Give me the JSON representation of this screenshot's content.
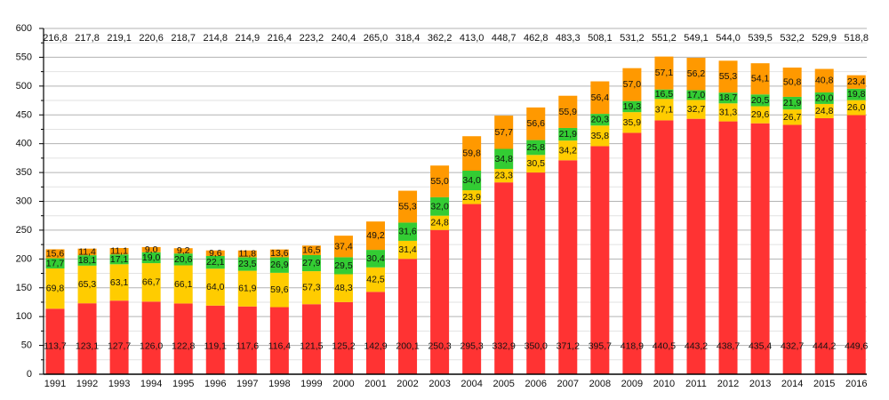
{
  "chart_data": {
    "type": "bar",
    "stacked": true,
    "title": "",
    "xlabel": "",
    "ylabel": "",
    "ylim": [
      0,
      600
    ],
    "y_major_step": 50,
    "y_minor_step": 25,
    "grid": true,
    "legend": "none",
    "categories": [
      "1991",
      "1992",
      "1993",
      "1994",
      "1995",
      "1996",
      "1997",
      "1998",
      "1999",
      "2000",
      "2001",
      "2002",
      "2003",
      "2004",
      "2005",
      "2006",
      "2007",
      "2008",
      "2009",
      "2010",
      "2011",
      "2012",
      "2013",
      "2014",
      "2015",
      "2016"
    ],
    "y_ticks": [
      "0",
      "50",
      "100",
      "150",
      "200",
      "250",
      "300",
      "350",
      "400",
      "450",
      "500",
      "550",
      "600"
    ],
    "series": [
      {
        "name": "series-1",
        "color": "#ff3333",
        "values": [
          113.7,
          123.1,
          127.7,
          126.0,
          122.8,
          119.1,
          117.6,
          116.4,
          121.5,
          125.2,
          142.9,
          200.1,
          250.3,
          295.3,
          332.9,
          350.0,
          371.2,
          395.7,
          418.9,
          440.5,
          443.2,
          438.7,
          435.4,
          432.7,
          444.2,
          449.6
        ],
        "labels": [
          "113,7",
          "123,1",
          "127,7",
          "126,0",
          "122,8",
          "119,1",
          "117,6",
          "116,4",
          "121,5",
          "125,2",
          "142,9",
          "200,1",
          "250,3",
          "295,3",
          "332,9",
          "350,0",
          "371,2",
          "395,7",
          "418,9",
          "440,5",
          "443,2",
          "438,7",
          "435,4",
          "432,7",
          "444,2",
          "449,6"
        ]
      },
      {
        "name": "series-2",
        "color": "#ffcc00",
        "values": [
          69.8,
          65.3,
          63.1,
          66.7,
          66.1,
          64.0,
          61.9,
          59.6,
          57.3,
          48.3,
          42.5,
          31.4,
          24.8,
          23.9,
          23.3,
          30.5,
          34.2,
          35.8,
          35.9,
          37.1,
          32.7,
          31.3,
          29.6,
          26.7,
          24.8,
          26.0
        ],
        "labels": [
          "69,8",
          "65,3",
          "63,1",
          "66,7",
          "66,1",
          "64,0",
          "61,9",
          "59,6",
          "57,3",
          "48,3",
          "42,5",
          "31,4",
          "24,8",
          "23,9",
          "23,3",
          "30,5",
          "34,2",
          "35,8",
          "35,9",
          "37,1",
          "32,7",
          "31,3",
          "29,6",
          "26,7",
          "24,8",
          "26,0"
        ]
      },
      {
        "name": "series-3",
        "color": "#33cc33",
        "values": [
          17.7,
          18.1,
          17.1,
          19.0,
          20.6,
          22.1,
          23.5,
          26.9,
          27.9,
          29.5,
          30.4,
          31.6,
          32.0,
          34.0,
          34.8,
          25.8,
          21.9,
          20.3,
          19.3,
          16.5,
          17.0,
          18.7,
          20.5,
          21.9,
          20.0,
          19.8
        ],
        "labels": [
          "17,7",
          "18,1",
          "17,1",
          "19,0",
          "20,6",
          "22,1",
          "23,5",
          "26,9",
          "27,9",
          "29,5",
          "30,4",
          "31,6",
          "32,0",
          "34,0",
          "34,8",
          "25,8",
          "21,9",
          "20,3",
          "19,3",
          "16,5",
          "17,0",
          "18,7",
          "20,5",
          "21,9",
          "20,0",
          "19,8"
        ]
      },
      {
        "name": "series-4",
        "color": "#ff9900",
        "values": [
          15.6,
          11.4,
          11.1,
          9.0,
          9.2,
          9.6,
          11.8,
          13.6,
          16.5,
          37.4,
          49.2,
          55.3,
          55.0,
          59.8,
          57.7,
          56.6,
          55.9,
          56.4,
          57.0,
          57.1,
          56.2,
          55.3,
          54.1,
          50.8,
          40.8,
          23.4
        ],
        "labels": [
          "15,6",
          "11,4",
          "11,1",
          "9,0",
          "9,2",
          "9,6",
          "11,8",
          "13,6",
          "16,5",
          "37,4",
          "49,2",
          "55,3",
          "55,0",
          "59,8",
          "57,7",
          "56,6",
          "55,9",
          "56,4",
          "57,0",
          "57,1",
          "56,2",
          "55,3",
          "54,1",
          "50,8",
          "40,8",
          "23,4"
        ]
      }
    ],
    "totals": [
      216.8,
      217.8,
      219.1,
      220.6,
      218.7,
      214.8,
      214.9,
      216.4,
      223.2,
      240.4,
      265.0,
      318.4,
      362.2,
      413.0,
      448.7,
      462.8,
      483.3,
      508.1,
      531.2,
      551.2,
      549.1,
      544.0,
      539.5,
      532.2,
      529.9,
      518.8
    ],
    "total_labels": [
      "216,8",
      "217,8",
      "219,1",
      "220,6",
      "218,7",
      "214,8",
      "214,9",
      "216,4",
      "223,2",
      "240,4",
      "265,0",
      "318,4",
      "362,2",
      "413,0",
      "448,7",
      "462,8",
      "483,3",
      "508,1",
      "531,2",
      "551,2",
      "549,1",
      "544,0",
      "539,5",
      "532,2",
      "529,9",
      "518,8"
    ]
  }
}
